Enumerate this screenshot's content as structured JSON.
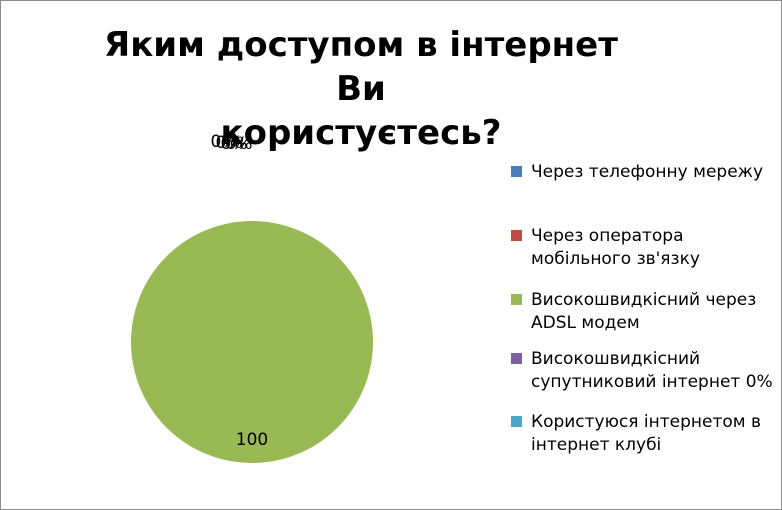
{
  "chart_data": {
    "type": "pie",
    "title_lines": [
      "Яким доступом в інтернет Ви",
      "користуєтесь?"
    ],
    "categories": [
      "Через телефонну мережу",
      "Через оператора мобільного зв'язку",
      "Високошвидкісний через ADSL модем",
      "Високошвидкісний супутниковий інтернет 0%",
      "Користуюся інтернетом в інтернет клубі"
    ],
    "values": [
      0,
      0,
      100,
      0,
      0
    ],
    "data_labels": [
      "0%",
      "0%",
      "100",
      "0%",
      "0%"
    ],
    "colors": [
      "#4a7ebb",
      "#be4b48",
      "#98b954",
      "#7d60a0",
      "#46aac5"
    ],
    "legend_position": "right"
  }
}
